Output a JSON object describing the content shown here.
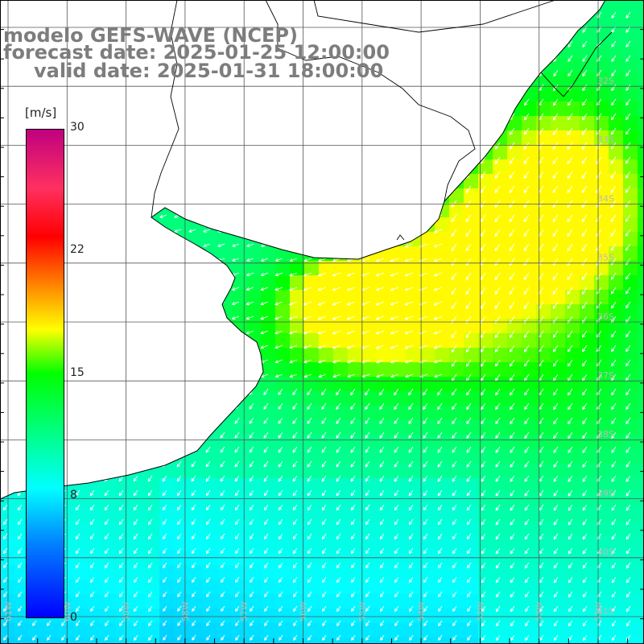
{
  "title": {
    "line1": "modelo GEFS-WAVE (NCEP)",
    "line2": "forecast date: 2025-01-25 12:00:00",
    "line3": "valid date: 2025-01-31 18:00:00"
  },
  "colorbar": {
    "unit": "[m/s]",
    "ticks": [
      "30",
      "22",
      "15",
      "8",
      "0"
    ],
    "colors": [
      "#0000ff",
      "#0080ff",
      "#00ffff",
      "#00ff00",
      "#ffff00",
      "#ff0000",
      "#c00080"
    ]
  },
  "map": {
    "variable": "wind speed",
    "lat_labels": [
      "32S",
      "33S",
      "34S",
      "35S",
      "36S",
      "37S",
      "38S",
      "39S",
      "40S",
      "41S"
    ],
    "lon_labels": [
      "61W",
      "60W",
      "59W",
      "58W",
      "57W",
      "56W",
      "55W",
      "54W",
      "53W",
      "52W",
      "51W"
    ],
    "vector_direction": "toward southwest",
    "colors": {
      "land": "#ffffff",
      "coastline": "#000000",
      "grid": "#555555",
      "label": "#bbbbbb"
    }
  }
}
